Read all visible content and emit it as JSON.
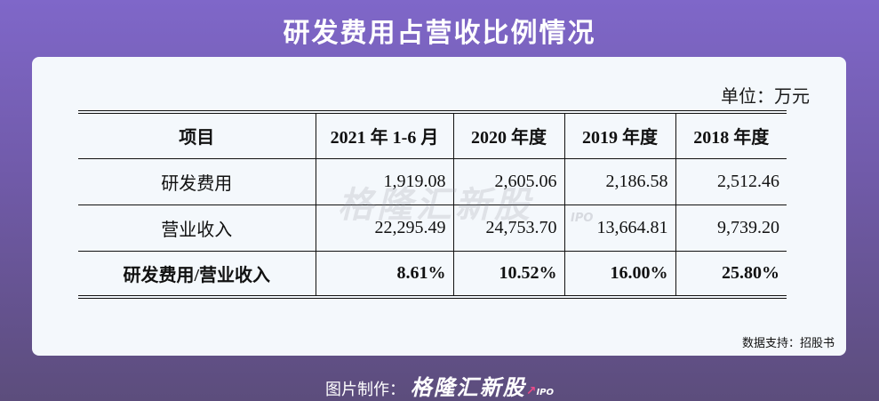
{
  "title": "研发费用占营收比例情况",
  "unit": "单位：万元",
  "watermark": {
    "text": "格隆汇新股",
    "sub": "IPO"
  },
  "table": {
    "headers": [
      "项目",
      "2021 年 1-6 月",
      "2020 年度",
      "2019 年度",
      "2018 年度"
    ],
    "rows": [
      {
        "label": "研发费用",
        "values": [
          "1,919.08",
          "2,605.06",
          "2,186.58",
          "2,512.46"
        ]
      },
      {
        "label": "营业收入",
        "values": [
          "22,295.49",
          "24,753.70",
          "13,664.81",
          "9,739.20"
        ]
      },
      {
        "label": "研发费用/营业收入",
        "values": [
          "8.61%",
          "10.52%",
          "16.00%",
          "25.80%"
        ]
      }
    ]
  },
  "source": "数据支持：招股书",
  "footer": {
    "prefix": "图片制作：",
    "brand": "格隆汇新股",
    "brand_sub": "IPO"
  }
}
